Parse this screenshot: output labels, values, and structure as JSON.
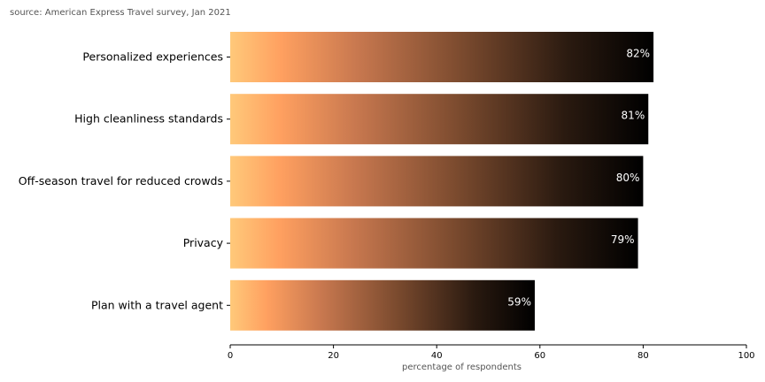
{
  "source_note": "source: American Express Travel survey, Jan 2021",
  "chart_data": {
    "type": "bar",
    "orientation": "horizontal",
    "categories": [
      "Personalized experiences",
      "High cleanliness standards",
      "Off-season travel for reduced crowds",
      "Privacy",
      "Plan with a travel agent"
    ],
    "values": [
      82,
      81,
      80,
      79,
      59
    ],
    "value_labels": [
      "82%",
      "81%",
      "80%",
      "79%",
      "59%"
    ],
    "xlabel": "percentage of respondents",
    "ylabel": "",
    "xlim": [
      0,
      100
    ],
    "xticks": [
      0,
      20,
      40,
      60,
      80,
      100
    ],
    "xtick_labels": [
      "0",
      "20",
      "40",
      "60",
      "80",
      "100"
    ],
    "grid": false,
    "bar_gradient": [
      "#ffc97a",
      "#ffa060",
      "#c8784f",
      "#7a4a2e",
      "#2a1a10",
      "#000000"
    ]
  }
}
